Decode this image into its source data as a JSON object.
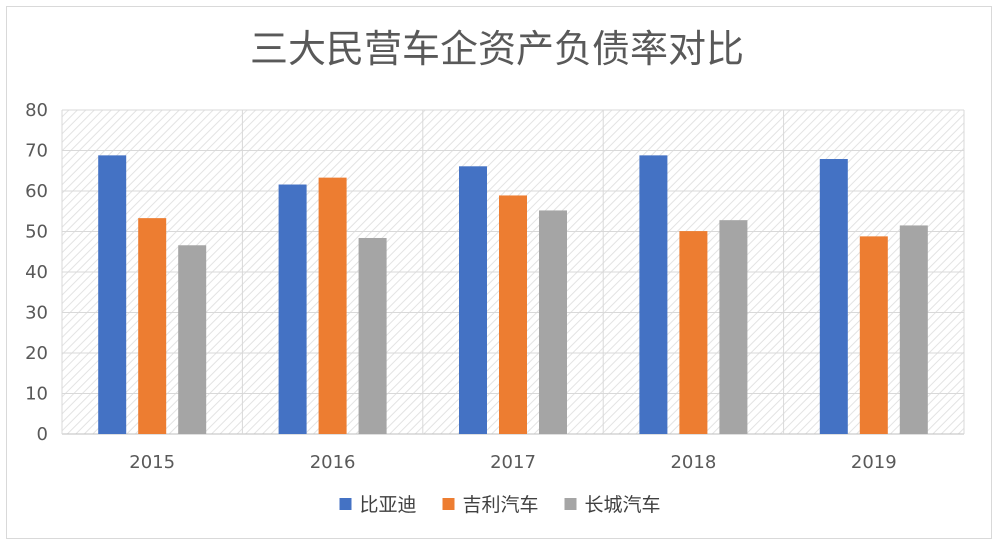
{
  "chart_data": {
    "type": "bar",
    "title": "三大民营车企资产负债率对比",
    "xlabel": "",
    "ylabel": "",
    "categories": [
      "2015",
      "2016",
      "2017",
      "2018",
      "2019"
    ],
    "ylim": [
      0,
      80
    ],
    "ytick_step": 10,
    "grid": true,
    "legend_position": "bottom",
    "series": [
      {
        "name": "比亚迪",
        "color": "#4472C4",
        "values": [
          68.8,
          61.6,
          66.1,
          68.8,
          67.9
        ]
      },
      {
        "name": "吉利汽车",
        "color": "#ED7D31",
        "values": [
          53.3,
          63.3,
          58.9,
          50.1,
          48.8
        ]
      },
      {
        "name": "长城汽车",
        "color": "#A5A5A5",
        "values": [
          46.6,
          48.4,
          55.2,
          52.8,
          51.5
        ]
      }
    ]
  }
}
